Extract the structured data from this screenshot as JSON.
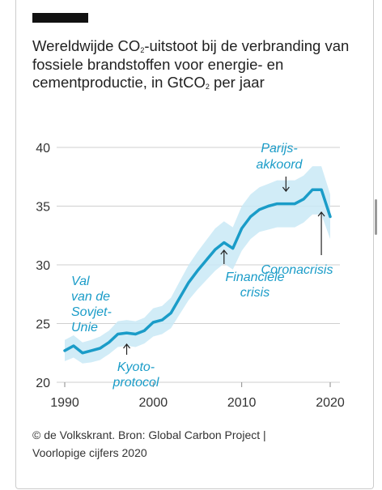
{
  "header": {
    "title_line1": "Wereldwijde CO",
    "title_sub1": "2",
    "title_mid": "-uitstoot bij de verbranding van fossiele brandstoffen voor energie- en cementproductie, in GtCO",
    "title_sub2": "2",
    "title_end": " per jaar"
  },
  "footer": {
    "line1": "© de Volkskrant. Bron: Global Carbon Project |",
    "line2": "Voorlopige cijfers 2020"
  },
  "colors": {
    "line": "#1a9cc8",
    "band": "#c9e9f6",
    "grid": "#cfcfcf",
    "accent": "#111111"
  },
  "chart_data": {
    "type": "line",
    "title": "Wereldwijde CO2-uitstoot bij de verbranding van fossiele brandstoffen voor energie- en cementproductie, in GtCO2 per jaar",
    "xlabel": "",
    "ylabel": "",
    "xlim": [
      1990,
      2020
    ],
    "ylim": [
      20,
      40
    ],
    "yticks": [
      20,
      25,
      30,
      35,
      40
    ],
    "xticks": [
      1990,
      2000,
      2010,
      2020
    ],
    "grid": true,
    "x": [
      1990,
      1991,
      1992,
      1993,
      1994,
      1995,
      1996,
      1997,
      1998,
      1999,
      2000,
      2001,
      2002,
      2003,
      2004,
      2005,
      2006,
      2007,
      2008,
      2009,
      2010,
      2011,
      2012,
      2013,
      2014,
      2015,
      2016,
      2017,
      2018,
      2019,
      2020
    ],
    "series": [
      {
        "values": [
          22.7,
          23.1,
          22.5,
          22.7,
          22.9,
          23.4,
          24.1,
          24.2,
          24.1,
          24.4,
          25.1,
          25.3,
          25.9,
          27.2,
          28.5,
          29.5,
          30.4,
          31.3,
          31.9,
          31.4,
          33.1,
          34.1,
          34.7,
          35.0,
          35.2,
          35.2,
          35.2,
          35.6,
          36.4,
          36.4,
          34.1
        ]
      }
    ],
    "uncertainty_band": {
      "lower": [
        21.8,
        22.1,
        21.6,
        21.7,
        21.9,
        22.4,
        23.0,
        23.1,
        23.0,
        23.3,
        23.9,
        24.1,
        24.6,
        25.8,
        27.0,
        27.9,
        28.7,
        29.5,
        30.1,
        29.6,
        31.2,
        32.2,
        32.8,
        33.0,
        33.2,
        33.2,
        33.2,
        33.6,
        34.3,
        34.3,
        32.2
      ],
      "upper": [
        23.6,
        24.0,
        23.4,
        23.6,
        23.9,
        24.4,
        25.2,
        25.3,
        25.2,
        25.5,
        26.3,
        26.5,
        27.2,
        28.6,
        30.0,
        31.1,
        32.1,
        33.1,
        33.7,
        33.2,
        35.0,
        36.0,
        36.6,
        36.9,
        37.2,
        37.2,
        37.2,
        37.6,
        38.4,
        38.4,
        36.0
      ]
    },
    "annotations": [
      {
        "lines": [
          "Val",
          "van de",
          "Sovjet-",
          "Unie"
        ]
      },
      {
        "lines": [
          "Kyoto-",
          "protocol"
        ]
      },
      {
        "lines": [
          "Financiële",
          "crisis"
        ]
      },
      {
        "lines": [
          "Parijs-",
          "akkoord"
        ]
      },
      {
        "lines": [
          "Coronacrisis"
        ]
      }
    ]
  }
}
